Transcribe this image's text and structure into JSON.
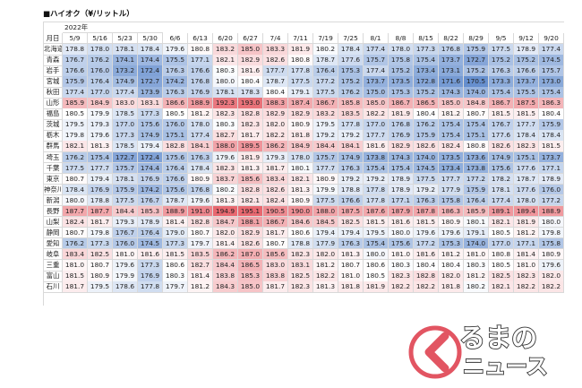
{
  "title": "■ハイオク（¥/リットル）",
  "chart_data": {
    "type": "heatmap",
    "year_label": "2022年",
    "corner_label": "月日",
    "columns": [
      "5/9",
      "5/16",
      "5/23",
      "5/30",
      "6/6",
      "6/13",
      "6/20",
      "6/27",
      "7/4",
      "7/11",
      "7/19",
      "7/25",
      "8/1",
      "8/8",
      "8/15",
      "8/22",
      "8/29",
      "9/5",
      "9/12",
      "9/20"
    ],
    "rows": [
      {
        "name": "北海道",
        "values": [
          178.8,
          178.0,
          178.1,
          178.4,
          179.6,
          180.8,
          183.2,
          185.0,
          183.3,
          181.9,
          180.2,
          178.4,
          177.4,
          178.0,
          177.3,
          176.8,
          175.9,
          177.5,
          178.9,
          177.4
        ]
      },
      {
        "name": "青森",
        "values": [
          176.7,
          176.2,
          174.1,
          174.4,
          175.5,
          177.1,
          182.1,
          182.9,
          182.6,
          180.8,
          178.7,
          177.6,
          175.7,
          175.8,
          175.4,
          173.7,
          172.7,
          175.2,
          175.2,
          174.5
        ]
      },
      {
        "name": "岩手",
        "values": [
          176.6,
          176.0,
          173.2,
          172.4,
          176.3,
          176.6,
          180.3,
          181.6,
          177.7,
          177.8,
          176.4,
          175.3,
          177.4,
          175.2,
          173.4,
          173.1,
          175.2,
          176.3,
          176.6,
          175.7
        ]
      },
      {
        "name": "宮城",
        "values": [
          175.9,
          176.4,
          174.9,
          172.7,
          174.2,
          176.8,
          180.0,
          180.4,
          178.7,
          177.5,
          177.2,
          175.2,
          173.7,
          173.5,
          172.8,
          171.6,
          170.5,
          173.3,
          173.7,
          173.0
        ]
      },
      {
        "name": "秋田",
        "values": [
          177.4,
          177.0,
          177.4,
          173.9,
          176.3,
          176.9,
          178.1,
          178.3,
          180.4,
          179.1,
          177.5,
          176.2,
          175.0,
          175.3,
          175.2,
          174.3,
          174.0,
          175.4,
          175.5,
          175.4
        ]
      },
      {
        "name": "山形",
        "values": [
          185.9,
          184.9,
          183.0,
          183.1,
          186.6,
          188.9,
          192.3,
          193.0,
          188.3,
          187.4,
          186.7,
          185.8,
          185.0,
          186.7,
          186.5,
          185.0,
          184.8,
          186.7,
          187.5,
          186.3
        ]
      },
      {
        "name": "福島",
        "values": [
          180.5,
          179.9,
          178.5,
          177.3,
          180.5,
          181.2,
          182.3,
          182.8,
          182.9,
          182.9,
          183.2,
          183.5,
          182.2,
          181.9,
          180.4,
          181.2,
          180.7,
          181.5,
          181.5,
          180.4
        ]
      },
      {
        "name": "茨城",
        "values": [
          179.5,
          179.3,
          177.0,
          175.6,
          176.0,
          178.0,
          180.3,
          182.3,
          182.0,
          180.9,
          179.5,
          177.8,
          177.0,
          176.8,
          176.2,
          175.4,
          175.4,
          176.7,
          177.7,
          175.9
        ]
      },
      {
        "name": "栃木",
        "values": [
          179.8,
          179.6,
          177.3,
          174.9,
          175.1,
          177.4,
          182.7,
          181.7,
          182.2,
          181.8,
          179.2,
          179.2,
          177.7,
          176.9,
          175.9,
          175.4,
          175.1,
          177.6,
          178.4,
          178.4
        ]
      },
      {
        "name": "群馬",
        "values": [
          182.1,
          181.3,
          178.5,
          179.4,
          182.8,
          184.1,
          188.0,
          189.5,
          186.2,
          184.9,
          184.4,
          184.1,
          181.6,
          182.9,
          182.6,
          182.4,
          180.8,
          182.6,
          182.3,
          181.5
        ]
      },
      {
        "name": "埼玉",
        "values": [
          176.2,
          175.4,
          172.7,
          172.4,
          175.6,
          176.3,
          179.6,
          181.9,
          179.3,
          178.0,
          175.7,
          174.9,
          173.8,
          174.3,
          174.0,
          173.5,
          173.6,
          174.9,
          175.1,
          173.7
        ]
      },
      {
        "name": "千葉",
        "values": [
          177.5,
          177.7,
          175.7,
          174.4,
          176.4,
          178.4,
          182.3,
          181.3,
          181.7,
          180.1,
          177.7,
          176.3,
          175.4,
          175.4,
          174.5,
          173.4,
          173.8,
          175.6,
          177.6,
          177.1
        ]
      },
      {
        "name": "東京",
        "values": [
          180.7,
          179.4,
          178.1,
          176.9,
          176.6,
          180.9,
          183.7,
          185.6,
          183.4,
          182.1,
          180.9,
          179.2,
          179.2,
          178.9,
          177.5,
          177.7,
          177.2,
          178.2,
          178.7,
          178.9
        ]
      },
      {
        "name": "神奈川",
        "values": [
          178.4,
          176.9,
          175.9,
          174.2,
          175.6,
          176.8,
          180.2,
          182.8,
          182.6,
          181.3,
          179.9,
          178.8,
          177.8,
          178.9,
          179.2,
          177.9,
          175.9,
          178.1,
          177.6,
          176.0
        ]
      },
      {
        "name": "新潟",
        "values": [
          180.0,
          178.8,
          177.5,
          176.7,
          178.7,
          179.6,
          181.3,
          182.1,
          182.4,
          180.9,
          177.5,
          176.6,
          177.8,
          177.1,
          176.3,
          175.8,
          176.4,
          177.4,
          178.0,
          177.2
        ]
      },
      {
        "name": "長野",
        "values": [
          187.7,
          187.7,
          184.4,
          185.3,
          188.9,
          191.0,
          194.9,
          195.1,
          190.5,
          190.0,
          188.0,
          187.5,
          187.6,
          187.9,
          187.8,
          186.3,
          185.9,
          189.1,
          189.4,
          188.9
        ]
      },
      {
        "name": "山梨",
        "values": [
          182.4,
          181.7,
          179.3,
          178.9,
          181.4,
          182.8,
          184.7,
          188.1,
          186.7,
          184.6,
          184.5,
          182.5,
          181.5,
          181.6,
          181.5,
          180.9,
          180.1,
          182.1,
          181.9,
          180.0
        ]
      },
      {
        "name": "静岡",
        "values": [
          180.7,
          179.8,
          176.7,
          176.4,
          179.0,
          180.7,
          182.0,
          182.9,
          181.7,
          180.6,
          179.4,
          179.4,
          179.5,
          180.0,
          179.6,
          179.6,
          179.1,
          180.5,
          181.2,
          179.8
        ]
      },
      {
        "name": "愛知",
        "values": [
          176.2,
          177.3,
          176.0,
          174.5,
          177.3,
          179.7,
          181.4,
          182.6,
          180.7,
          178.8,
          177.9,
          176.3,
          175.4,
          175.6,
          177.2,
          175.3,
          174.0,
          177.0,
          177.1,
          175.8
        ]
      },
      {
        "name": "岐阜",
        "values": [
          183.4,
          182.5,
          181.0,
          181.6,
          181.5,
          183.5,
          186.2,
          187.0,
          185.6,
          182.3,
          182.0,
          181.3,
          180.0,
          181.0,
          181.6,
          181.2,
          181.0,
          180.8,
          181.4,
          180.9
        ]
      },
      {
        "name": "三重",
        "values": [
          181.0,
          180.7,
          179.6,
          177.3,
          180.6,
          182.7,
          184.4,
          186.5,
          183.0,
          183.1,
          181.2,
          180.7,
          180.6,
          180.3,
          180.4,
          180.4,
          180.3,
          180.5,
          181.0,
          179.6
        ]
      },
      {
        "name": "富山",
        "values": [
          181.5,
          180.9,
          179.9,
          176.9,
          180.3,
          181.4,
          183.8,
          185.3,
          183.8,
          182.5,
          182.2,
          181.0,
          180.5,
          182.3,
          182.8,
          182.0,
          181.2,
          182.5,
          182.3,
          182.0
        ]
      },
      {
        "name": "石川",
        "values": [
          181.7,
          179.5,
          178.6,
          177.8,
          179.7,
          181.2,
          184.3,
          185.0,
          181.7,
          182.3,
          181.3,
          181.8,
          181.9,
          182.2,
          182.2,
          181.8,
          180.2,
          182.1,
          182.2,
          182.2
        ]
      }
    ]
  },
  "logo": {
    "line1": "るまの",
    "line2": "ニュース"
  }
}
